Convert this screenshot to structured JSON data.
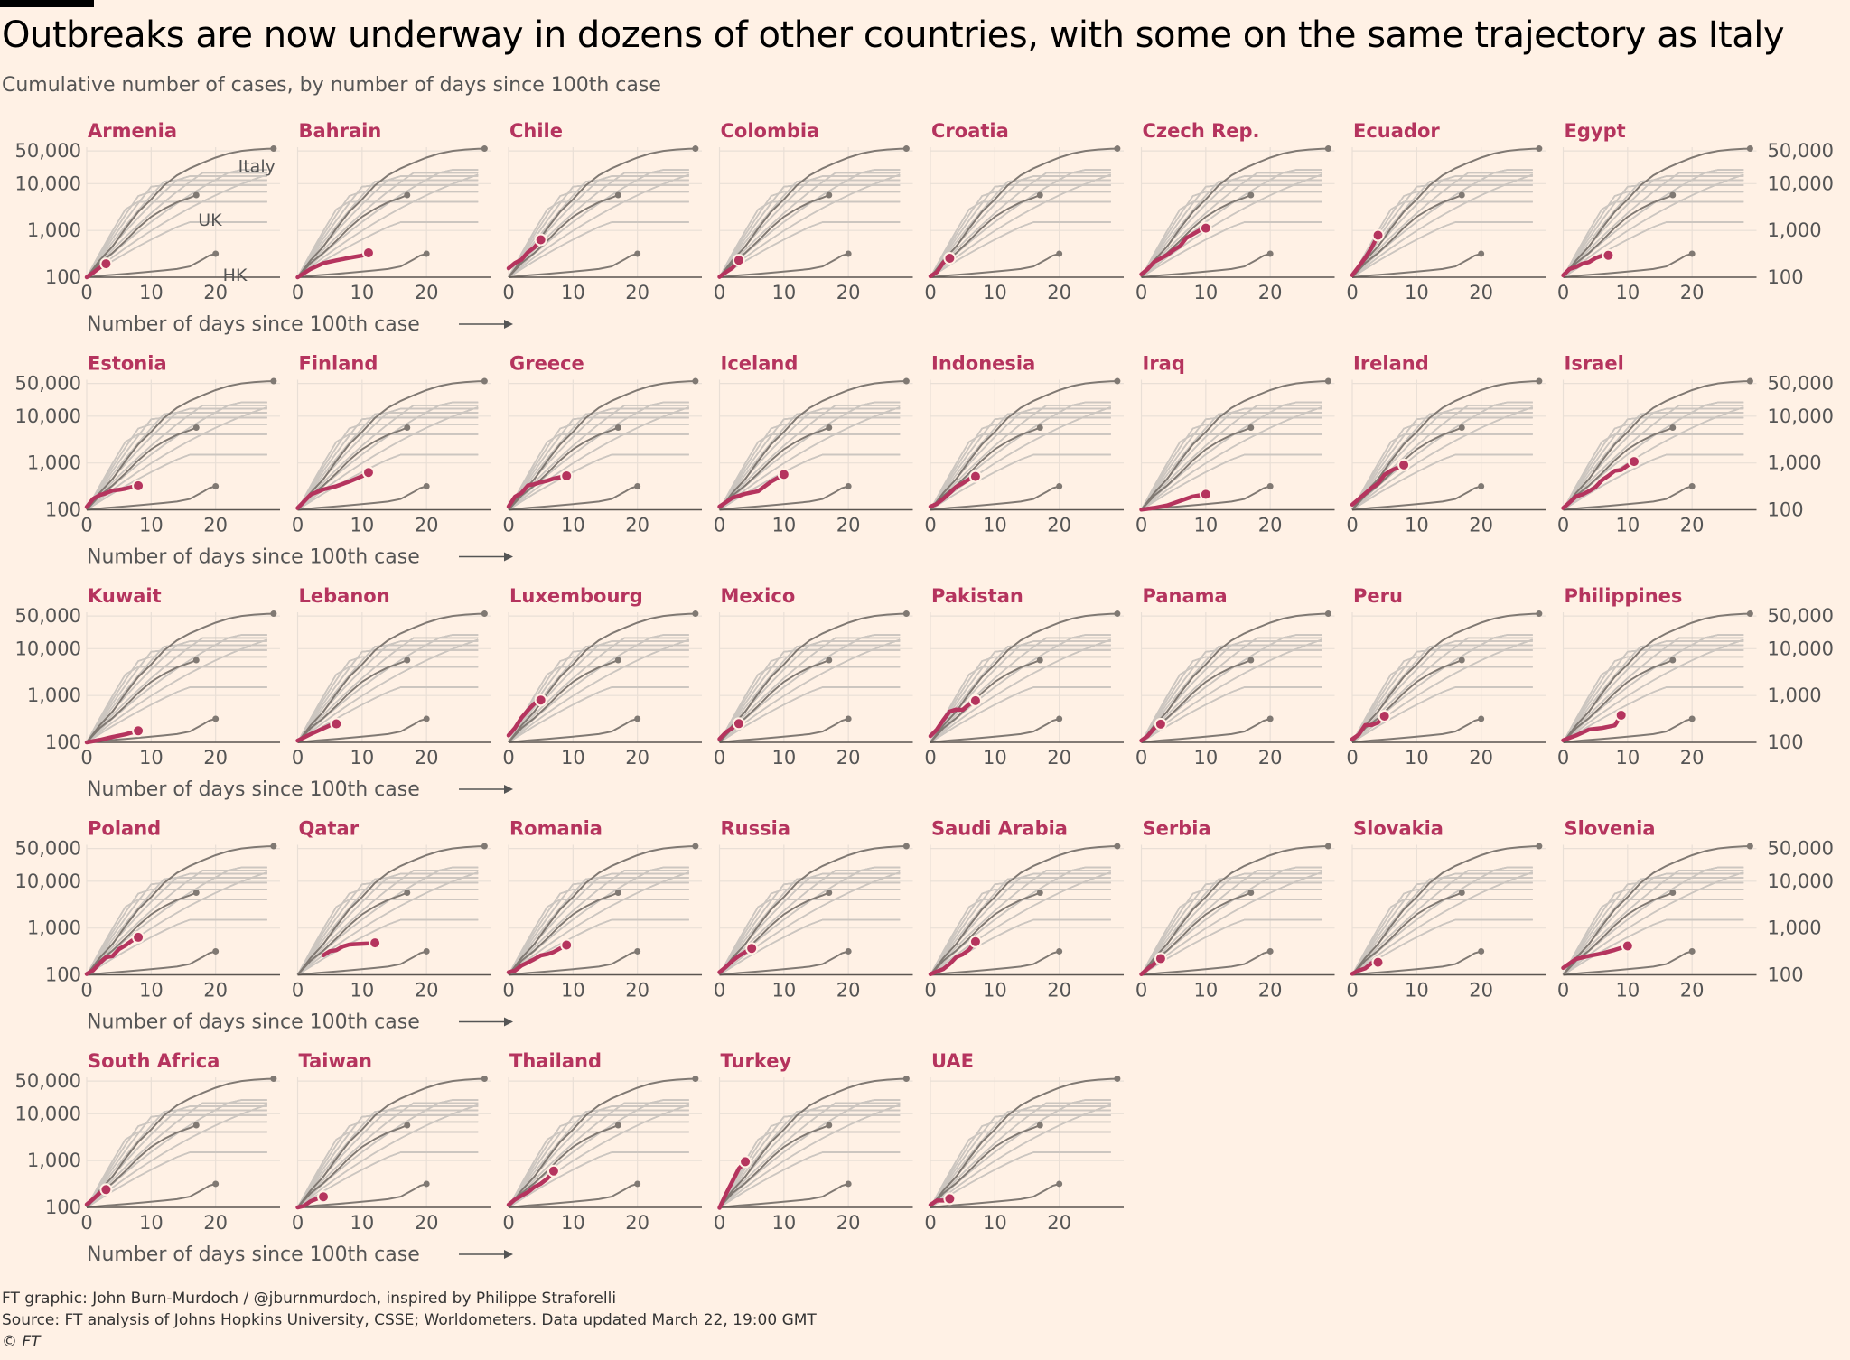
{
  "title": "Outbreaks are now underway in dozens of other countries, with some on the same trajectory as Italy",
  "subtitle": "Cumulative number of cases, by number of days since 100th case",
  "footer": {
    "credit": "FT graphic: John Burn-Murdoch / @jburnmurdoch, inspired by Philippe Straforelli",
    "source": "Source: FT analysis of Johns Hopkins University, CSSE; Worldometers. Data updated March 22, 19:00 GMT",
    "copyright": "© FT"
  },
  "colors": {
    "background": "#fff1e5",
    "highlight": "#b5345e",
    "reference": "#807973",
    "context": "#ccc6c0",
    "grid": "#e9dfd6",
    "axis": "#5a5550",
    "text": "#555555"
  },
  "chart_data": {
    "type": "line",
    "layout": "small-multiples",
    "xlabel": "Number of days since 100th case",
    "ylabel": "Cumulative number of cases",
    "yscale": "log",
    "xlim": [
      0,
      30
    ],
    "ylim": [
      100,
      60000
    ],
    "xticks": [
      0,
      10,
      20
    ],
    "xtick_labels": [
      "0",
      "10",
      "20"
    ],
    "yticks": [
      100,
      1000,
      10000,
      50000
    ],
    "ytick_labels": [
      "100",
      "1,000",
      "10,000",
      "50,000"
    ],
    "reference_series": [
      {
        "name": "Italy",
        "x": [
          0,
          2,
          4,
          6,
          8,
          10,
          12,
          14,
          16,
          18,
          20,
          22,
          24,
          26,
          28,
          29
        ],
        "y": [
          100,
          230,
          450,
          1100,
          2500,
          4600,
          9200,
          15100,
          21200,
          28000,
          36000,
          44000,
          50000,
          53500,
          55500,
          56000
        ]
      },
      {
        "name": "UK",
        "x": [
          0,
          2,
          4,
          6,
          8,
          10,
          12,
          14,
          16,
          17
        ],
        "y": [
          100,
          200,
          330,
          600,
          1140,
          1960,
          2900,
          3980,
          5000,
          5700
        ]
      },
      {
        "name": "HK",
        "x": [
          0,
          3,
          6,
          9,
          12,
          14,
          16,
          18,
          19,
          20
        ],
        "y": [
          100,
          110,
          118,
          128,
          140,
          150,
          170,
          240,
          290,
          318
        ]
      }
    ],
    "countries": [
      {
        "name": "Armenia",
        "x": [
          0,
          1,
          2,
          3
        ],
        "y": [
          100,
          125,
          160,
          194
        ]
      },
      {
        "name": "Bahrain",
        "x": [
          0,
          2,
          4,
          6,
          8,
          10,
          11
        ],
        "y": [
          100,
          150,
          200,
          230,
          260,
          290,
          332
        ]
      },
      {
        "name": "Chile",
        "x": [
          0,
          1,
          2,
          3,
          4,
          5
        ],
        "y": [
          155,
          201,
          238,
          342,
          434,
          632
        ]
      },
      {
        "name": "Colombia",
        "x": [
          0,
          1,
          2,
          3
        ],
        "y": [
          102,
          128,
          158,
          231
        ]
      },
      {
        "name": "Croatia",
        "x": [
          0,
          1,
          2,
          3
        ],
        "y": [
          105,
          128,
          206,
          254
        ]
      },
      {
        "name": "Czech Rep.",
        "x": [
          0,
          1,
          2,
          3,
          4,
          5,
          6,
          7,
          8,
          9,
          10
        ],
        "y": [
          116,
          150,
          214,
          253,
          298,
          383,
          464,
          694,
          833,
          995,
          1120
        ]
      },
      {
        "name": "Ecuador",
        "x": [
          0,
          1,
          2,
          3,
          4
        ],
        "y": [
          111,
          168,
          260,
          426,
          789
        ]
      },
      {
        "name": "Egypt",
        "x": [
          0,
          1,
          2,
          3,
          4,
          5,
          6,
          7
        ],
        "y": [
          110,
          150,
          166,
          196,
          210,
          256,
          285,
          294
        ]
      },
      {
        "name": "Estonia",
        "x": [
          0,
          1,
          2,
          3,
          4,
          5,
          6,
          7,
          8
        ],
        "y": [
          115,
          171,
          205,
          225,
          258,
          267,
          283,
          306,
          326
        ]
      },
      {
        "name": "Finland",
        "x": [
          0,
          2,
          4,
          6,
          8,
          10,
          11
        ],
        "y": [
          109,
          210,
          272,
          319,
          400,
          521,
          626
        ]
      },
      {
        "name": "Greece",
        "x": [
          0,
          1,
          2,
          3,
          4,
          5,
          6,
          7,
          8,
          9
        ],
        "y": [
          117,
          190,
          228,
          331,
          352,
          387,
          418,
          464,
          495,
          530
        ]
      },
      {
        "name": "Iceland",
        "x": [
          0,
          2,
          4,
          6,
          8,
          10
        ],
        "y": [
          117,
          180,
          220,
          250,
          400,
          568
        ]
      },
      {
        "name": "Indonesia",
        "x": [
          0,
          1,
          2,
          3,
          4,
          5,
          6,
          7
        ],
        "y": [
          117,
          134,
          172,
          227,
          309,
          369,
          450,
          514
        ]
      },
      {
        "name": "Iraq",
        "x": [
          0,
          2,
          4,
          6,
          8,
          10
        ],
        "y": [
          101,
          110,
          124,
          154,
          192,
          214
        ]
      },
      {
        "name": "Ireland",
        "x": [
          0,
          1,
          2,
          3,
          4,
          5,
          6,
          7,
          8
        ],
        "y": [
          129,
          169,
          223,
          292,
          366,
          557,
          683,
          785,
          906
        ]
      },
      {
        "name": "Israel",
        "x": [
          0,
          1,
          2,
          3,
          4,
          5,
          6,
          7,
          8,
          9,
          10,
          11
        ],
        "y": [
          109,
          143,
          193,
          213,
          250,
          304,
          427,
          529,
          677,
          705,
          883,
          1071
        ]
      },
      {
        "name": "Kuwait",
        "x": [
          0,
          2,
          4,
          6,
          8
        ],
        "y": [
          100,
          112,
          130,
          148,
          176
        ]
      },
      {
        "name": "Lebanon",
        "x": [
          0,
          2,
          4,
          5,
          6
        ],
        "y": [
          109,
          149,
          198,
          230,
          248
        ]
      },
      {
        "name": "Luxembourg",
        "x": [
          0,
          1,
          2,
          3,
          4,
          5
        ],
        "y": [
          140,
          203,
          335,
          484,
          670,
          798
        ]
      },
      {
        "name": "Mexico",
        "x": [
          0,
          1,
          2,
          3
        ],
        "y": [
          118,
          164,
          203,
          251
        ]
      },
      {
        "name": "Pakistan",
        "x": [
          0,
          1,
          2,
          3,
          4,
          5,
          6,
          7
        ],
        "y": [
          136,
          187,
          301,
          454,
          501,
          495,
          646,
          776
        ]
      },
      {
        "name": "Panama",
        "x": [
          0,
          1,
          2,
          3
        ],
        "y": [
          109,
          137,
          200,
          245
        ]
      },
      {
        "name": "Peru",
        "x": [
          0,
          1,
          2,
          3,
          4,
          5
        ],
        "y": [
          117,
          145,
          234,
          234,
          263,
          363
        ]
      },
      {
        "name": "Philippines",
        "x": [
          0,
          2,
          4,
          6,
          8,
          9
        ],
        "y": [
          111,
          140,
          187,
          202,
          230,
          380
        ]
      },
      {
        "name": "Poland",
        "x": [
          0,
          1,
          2,
          3,
          4,
          5,
          6,
          7,
          8
        ],
        "y": [
          104,
          125,
          177,
          238,
          251,
          355,
          425,
          536,
          634
        ]
      },
      {
        "name": "Qatar",
        "x": [
          4,
          5,
          6,
          7,
          8,
          9,
          10,
          11,
          12
        ],
        "y": [
          262,
          320,
          337,
          401,
          442,
          452,
          460,
          470,
          481
        ]
      },
      {
        "name": "Romania",
        "x": [
          0,
          1,
          2,
          3,
          4,
          5,
          6,
          7,
          8,
          9
        ],
        "y": [
          113,
          123,
          158,
          184,
          217,
          260,
          277,
          308,
          367,
          433
        ]
      },
      {
        "name": "Russia",
        "x": [
          0,
          1,
          2,
          3,
          4,
          5
        ],
        "y": [
          114,
          147,
          199,
          253,
          306,
          367
        ]
      },
      {
        "name": "Saudi Arabia",
        "x": [
          0,
          1,
          2,
          3,
          4,
          5,
          6,
          7
        ],
        "y": [
          103,
          118,
          133,
          171,
          238,
          274,
          344,
          511
        ]
      },
      {
        "name": "Serbia",
        "x": [
          0,
          1,
          2,
          3
        ],
        "y": [
          103,
          135,
          171,
          222
        ]
      },
      {
        "name": "Slovakia",
        "x": [
          0,
          1,
          2,
          3,
          4
        ],
        "y": [
          105,
          123,
          137,
          178,
          185
        ]
      },
      {
        "name": "Slovenia",
        "x": [
          0,
          2,
          4,
          6,
          8,
          10
        ],
        "y": [
          141,
          219,
          253,
          286,
          341,
          414
        ]
      },
      {
        "name": "South Africa",
        "x": [
          0,
          1,
          2,
          3
        ],
        "y": [
          116,
          150,
          202,
          240
        ]
      },
      {
        "name": "Taiwan",
        "x": [
          0,
          1,
          2,
          3,
          4
        ],
        "y": [
          100,
          108,
          135,
          153,
          169
        ]
      },
      {
        "name": "Thailand",
        "x": [
          0,
          1,
          2,
          3,
          4,
          5,
          6,
          7
        ],
        "y": [
          114,
          147,
          177,
          212,
          272,
          322,
          411,
          599
        ]
      },
      {
        "name": "Turkey",
        "x": [
          0,
          1,
          2,
          3,
          4
        ],
        "y": [
          98,
          191,
          359,
          670,
          947
        ]
      },
      {
        "name": "UAE",
        "x": [
          0,
          1,
          2,
          3
        ],
        "y": [
          113,
          140,
          140,
          153
        ]
      }
    ]
  }
}
